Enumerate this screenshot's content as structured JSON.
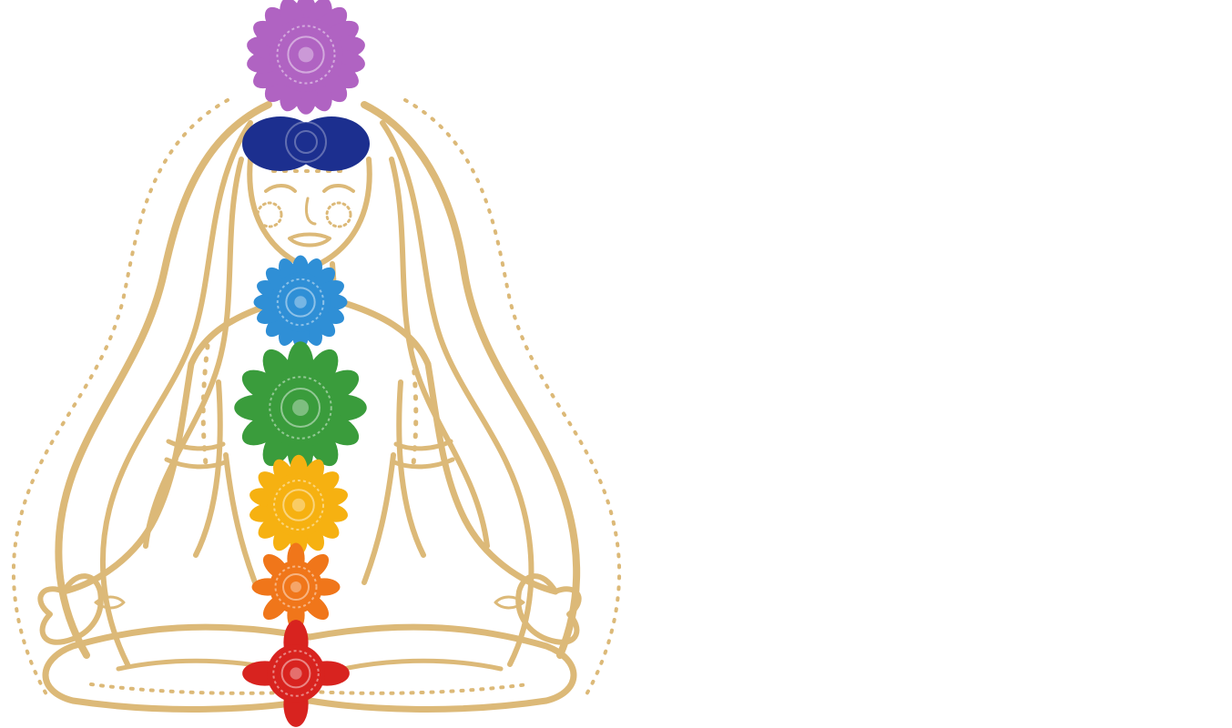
{
  "illustration": {
    "subject": "meditating-woman-chakras",
    "colors": {
      "background": "#ffffff",
      "gold": "#dcb978",
      "crown": "#b063c2",
      "third_eye": "#1c2f8f",
      "throat": "#2f8fd6",
      "heart": "#3a9c3c",
      "solar_plexus": "#f6b111",
      "sacral": "#f0761a",
      "root": "#d8231f"
    }
  }
}
